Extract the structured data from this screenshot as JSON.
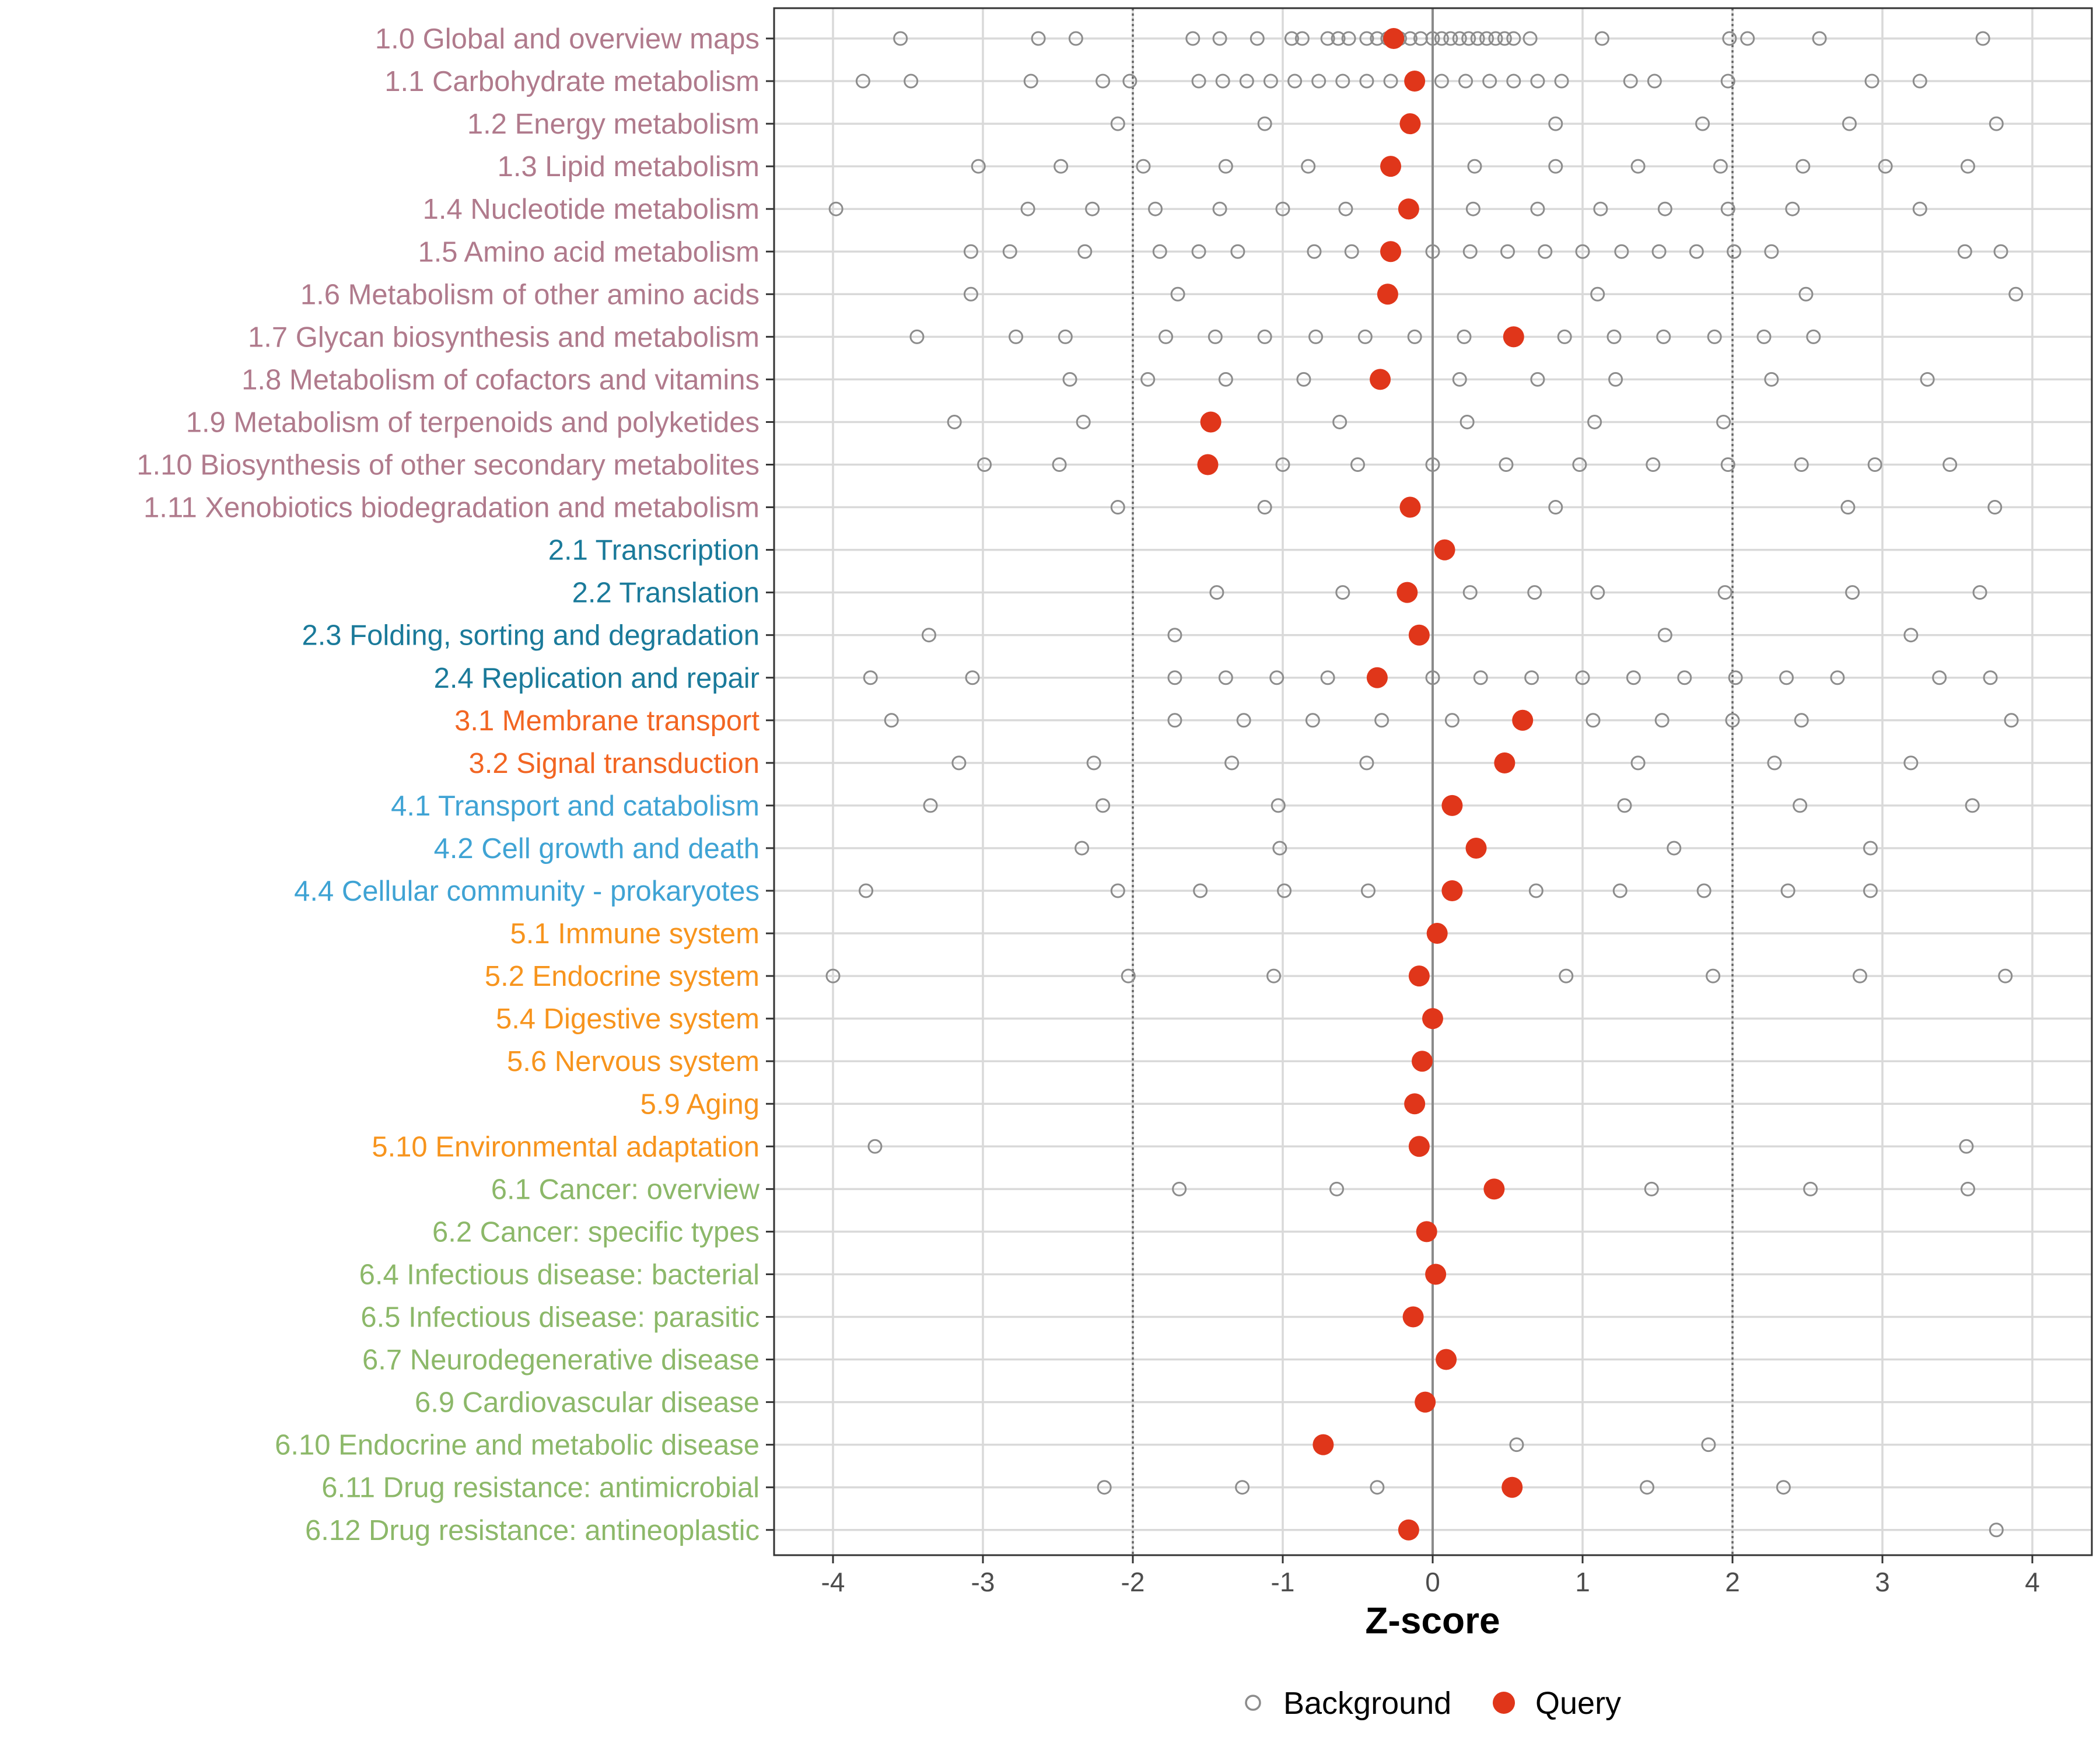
{
  "chart_data": {
    "type": "scatter",
    "xlabel": "Z-score",
    "xlim": [
      -4.5,
      4.3
    ],
    "xticks": [
      -4,
      -3,
      -2,
      -1,
      0,
      1,
      2,
      3,
      4
    ],
    "xtick_labels": [
      "-4",
      "-3",
      "-2",
      "-1",
      "0",
      "1",
      "2",
      "3",
      "4"
    ],
    "reference_lines": [
      -2,
      2
    ],
    "zero_line": 0,
    "legend": [
      {
        "key": "background",
        "label": "Background"
      },
      {
        "key": "query",
        "label": "Query"
      }
    ],
    "colors": {
      "group1": "#b07a8c",
      "group2": "#1a7a9a",
      "group3": "#f26522",
      "group4": "#3fa3d4",
      "group5": "#f7941d",
      "group6": "#8cb869",
      "query": "#e0361a",
      "background": "#8c8c8c"
    },
    "categories": [
      {
        "label": "1.0 Global and overview maps",
        "group": 1,
        "query": -0.26,
        "background": [
          -3.55,
          -2.63,
          -2.38,
          -1.6,
          -1.42,
          -1.17,
          -0.94,
          -0.87,
          -0.7,
          -0.63,
          -0.56,
          -0.44,
          -0.37,
          -0.3,
          -0.22,
          -0.15,
          -0.08,
          0.0,
          0.06,
          0.12,
          0.18,
          0.24,
          0.3,
          0.36,
          0.42,
          0.48,
          0.54,
          0.65,
          1.13,
          1.98,
          2.1,
          2.58,
          3.67
        ]
      },
      {
        "label": "1.1 Carbohydrate metabolism",
        "group": 1,
        "query": -0.12,
        "background": [
          -3.8,
          -3.48,
          -2.68,
          -2.2,
          -2.02,
          -1.56,
          -1.4,
          -1.24,
          -1.08,
          -0.92,
          -0.76,
          -0.6,
          -0.44,
          -0.28,
          0.06,
          0.22,
          0.38,
          0.54,
          0.7,
          0.86,
          1.32,
          1.48,
          1.97,
          2.93,
          3.25
        ]
      },
      {
        "label": "1.2 Energy metabolism",
        "group": 1,
        "query": -0.15,
        "background": [
          -2.1,
          -1.12,
          0.82,
          1.8,
          2.78,
          3.76
        ]
      },
      {
        "label": "1.3 Lipid metabolism",
        "group": 1,
        "query": -0.28,
        "background": [
          -3.03,
          -2.48,
          -1.93,
          -1.38,
          -0.83,
          0.28,
          0.82,
          1.37,
          1.92,
          2.47,
          3.02,
          3.57
        ]
      },
      {
        "label": "1.4 Nucleotide metabolism",
        "group": 1,
        "query": -0.16,
        "background": [
          -3.98,
          -2.7,
          -2.27,
          -1.85,
          -1.42,
          -1.0,
          -0.58,
          0.27,
          0.7,
          1.12,
          1.55,
          1.97,
          2.4,
          3.25
        ]
      },
      {
        "label": "1.5 Amino acid metabolism",
        "group": 1,
        "query": -0.28,
        "background": [
          -3.08,
          -2.82,
          -2.32,
          -1.82,
          -1.56,
          -1.3,
          -0.79,
          -0.54,
          0.0,
          0.25,
          0.5,
          0.75,
          1.0,
          1.26,
          1.51,
          1.76,
          2.01,
          2.26,
          3.55,
          3.79
        ]
      },
      {
        "label": "1.6 Metabolism of other amino acids",
        "group": 1,
        "query": -0.3,
        "background": [
          -3.08,
          -1.7,
          1.1,
          2.49,
          3.89
        ]
      },
      {
        "label": "1.7 Glycan biosynthesis and metabolism",
        "group": 1,
        "query": 0.54,
        "background": [
          -3.44,
          -2.78,
          -2.45,
          -1.78,
          -1.45,
          -1.12,
          -0.78,
          -0.45,
          -0.12,
          0.21,
          0.88,
          1.21,
          1.54,
          1.88,
          2.21,
          2.54
        ]
      },
      {
        "label": "1.8 Metabolism of cofactors and vitamins",
        "group": 1,
        "query": -0.35,
        "background": [
          -2.42,
          -1.9,
          -1.38,
          -0.86,
          0.18,
          0.7,
          1.22,
          2.26,
          3.3
        ]
      },
      {
        "label": "1.9 Metabolism of terpenoids and polyketides",
        "group": 1,
        "query": -1.48,
        "background": [
          -3.19,
          -2.33,
          -0.62,
          0.23,
          1.08,
          1.94
        ]
      },
      {
        "label": "1.10 Biosynthesis of other secondary metabolites",
        "group": 1,
        "query": -1.5,
        "background": [
          -2.99,
          -2.49,
          -1.0,
          -0.5,
          0.0,
          0.49,
          0.98,
          1.47,
          1.97,
          2.46,
          2.95,
          3.45
        ]
      },
      {
        "label": "1.11 Xenobiotics biodegradation and metabolism",
        "group": 1,
        "query": -0.15,
        "background": [
          -2.1,
          -1.12,
          0.82,
          2.77,
          3.75
        ]
      },
      {
        "label": "2.1 Transcription",
        "group": 2,
        "query": 0.08,
        "background": []
      },
      {
        "label": "2.2 Translation",
        "group": 2,
        "query": -0.17,
        "background": [
          -1.44,
          -0.6,
          0.25,
          0.68,
          1.1,
          1.95,
          2.8,
          3.65
        ]
      },
      {
        "label": "2.3 Folding, sorting and degradation",
        "group": 2,
        "query": -0.09,
        "background": [
          -3.36,
          -1.72,
          1.55,
          3.19
        ]
      },
      {
        "label": "2.4 Replication and repair",
        "group": 2,
        "query": -0.37,
        "background": [
          -3.75,
          -3.07,
          -1.72,
          -1.38,
          -1.04,
          -0.7,
          0.0,
          0.32,
          0.66,
          1.0,
          1.34,
          1.68,
          2.02,
          2.36,
          2.7,
          3.38,
          3.72
        ]
      },
      {
        "label": "3.1 Membrane transport",
        "group": 3,
        "query": 0.6,
        "background": [
          -3.61,
          -1.72,
          -1.26,
          -0.8,
          -0.34,
          0.13,
          1.07,
          1.53,
          2.0,
          2.46,
          3.86
        ]
      },
      {
        "label": "3.2 Signal transduction",
        "group": 3,
        "query": 0.48,
        "background": [
          -3.16,
          -2.26,
          -1.34,
          -0.44,
          1.37,
          2.28,
          3.19
        ]
      },
      {
        "label": "4.1 Transport and catabolism",
        "group": 4,
        "query": 0.13,
        "background": [
          -3.35,
          -2.2,
          -1.03,
          1.28,
          2.45,
          3.6
        ]
      },
      {
        "label": "4.2 Cell growth and death",
        "group": 4,
        "query": 0.29,
        "background": [
          -2.34,
          -1.02,
          1.61,
          2.92
        ]
      },
      {
        "label": "4.4 Cellular community - prokaryotes",
        "group": 4,
        "query": 0.13,
        "background": [
          -3.78,
          -2.1,
          -1.55,
          -0.99,
          -0.43,
          0.69,
          1.25,
          1.81,
          2.37,
          2.92
        ]
      },
      {
        "label": "5.1 Immune system",
        "group": 5,
        "query": 0.03,
        "background": []
      },
      {
        "label": "5.2 Endocrine system",
        "group": 5,
        "query": -0.09,
        "background": [
          -4.0,
          -2.03,
          -1.06,
          0.89,
          1.87,
          2.85,
          3.82
        ]
      },
      {
        "label": "5.4 Digestive system",
        "group": 5,
        "query": 0.0,
        "background": []
      },
      {
        "label": "5.6 Nervous system",
        "group": 5,
        "query": -0.07,
        "background": []
      },
      {
        "label": "5.9 Aging",
        "group": 5,
        "query": -0.12,
        "background": []
      },
      {
        "label": "5.10 Environmental adaptation",
        "group": 5,
        "query": -0.09,
        "background": [
          -3.72,
          3.56
        ]
      },
      {
        "label": "6.1 Cancer: overview",
        "group": 6,
        "query": 0.41,
        "background": [
          -1.69,
          -0.64,
          1.46,
          2.52,
          3.57
        ]
      },
      {
        "label": "6.2 Cancer: specific types",
        "group": 6,
        "query": -0.04,
        "background": []
      },
      {
        "label": "6.4 Infectious disease: bacterial",
        "group": 6,
        "query": 0.02,
        "background": []
      },
      {
        "label": "6.5 Infectious disease: parasitic",
        "group": 6,
        "query": -0.13,
        "background": []
      },
      {
        "label": "6.7 Neurodegenerative disease",
        "group": 6,
        "query": 0.09,
        "background": []
      },
      {
        "label": "6.9 Cardiovascular disease",
        "group": 6,
        "query": -0.05,
        "background": []
      },
      {
        "label": "6.10 Endocrine and metabolic disease",
        "group": 6,
        "query": -0.73,
        "background": [
          0.56,
          1.84
        ]
      },
      {
        "label": "6.11 Drug resistance: antimicrobial",
        "group": 6,
        "query": 0.53,
        "background": [
          -2.19,
          -1.27,
          -0.37,
          1.43,
          2.34
        ]
      },
      {
        "label": "6.12 Drug resistance: antineoplastic",
        "group": 6,
        "query": -0.16,
        "background": [
          3.76
        ]
      }
    ]
  }
}
